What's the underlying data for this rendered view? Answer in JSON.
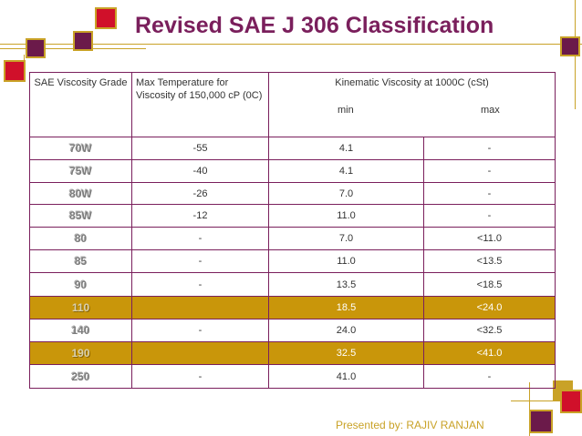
{
  "title": "Revised SAE J 306 Classification",
  "colors": {
    "title": "#7a1f5c",
    "accent": "#c9a227",
    "highlight": "#c9960a",
    "square_red": "#d0102a",
    "square_purple": "#6b1a4a",
    "square_gold": "#c9a227"
  },
  "table": {
    "header": {
      "col1": "SAE Viscosity Grade",
      "col2": "Max Temperature for Viscosity of 150,000 cP (0C)",
      "col3": "Kinematic Viscosity at 1000C (cSt)",
      "min": "min",
      "max": "max"
    },
    "rows": [
      {
        "grade": "70W",
        "temp": "-55",
        "min": "4.1",
        "max": "-"
      },
      {
        "grade": "75W",
        "temp": "-40",
        "min": "4.1",
        "max": "-"
      },
      {
        "grade": "80W",
        "temp": "-26",
        "min": "7.0",
        "max": "-"
      },
      {
        "grade": "85W",
        "temp": "-12",
        "min": "11.0",
        "max": "-"
      },
      {
        "grade": "80",
        "temp": "-",
        "min": "7.0",
        "max": "<11.0"
      },
      {
        "grade": "85",
        "temp": "-",
        "min": "11.0",
        "max": "<13.5"
      },
      {
        "grade": "90",
        "temp": "-",
        "min": "13.5",
        "max": "<18.5"
      },
      {
        "grade": "110",
        "temp": "",
        "min": "18.5",
        "max": "<24.0"
      },
      {
        "grade": "140",
        "temp": "-",
        "min": "24.0",
        "max": "<32.5"
      },
      {
        "grade": "190",
        "temp": "",
        "min": "32.5",
        "max": "<41.0"
      },
      {
        "grade": "250",
        "temp": "-",
        "min": "41.0",
        "max": "-"
      }
    ]
  },
  "footer": "Presented  by: RAJIV  RANJAN"
}
